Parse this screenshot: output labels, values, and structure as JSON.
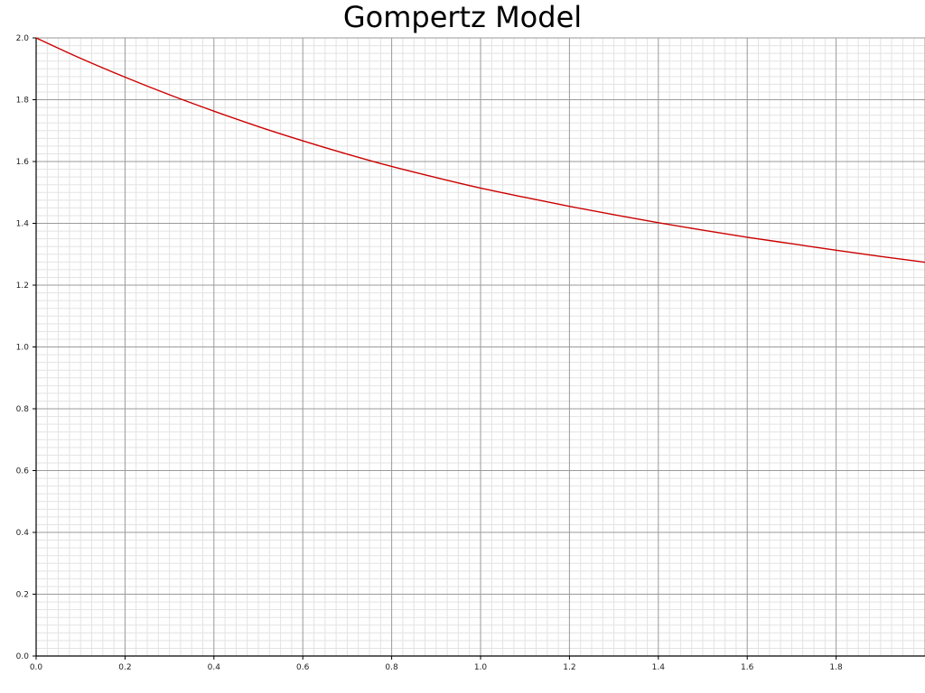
{
  "chart_data": {
    "type": "line",
    "title": "Gompertz Model",
    "xlabel": "",
    "ylabel": "",
    "xlim": [
      0,
      2.0
    ],
    "ylim": [
      0,
      2.0
    ],
    "x_ticks": [
      "0.0",
      "0.2",
      "0.4",
      "0.6",
      "0.8",
      "1.0",
      "1.2",
      "1.4",
      "1.6",
      "1.8"
    ],
    "y_ticks": [
      "0.0",
      "0.2",
      "0.4",
      "0.6",
      "0.8",
      "1.0",
      "1.2",
      "1.4",
      "1.6",
      "1.8",
      "2.0"
    ],
    "grid": true,
    "legend": "none",
    "series": [
      {
        "color": "#cc0000",
        "x": [
          0.0,
          0.1,
          0.2,
          0.3,
          0.4,
          0.5,
          0.6,
          0.7,
          0.8,
          0.9,
          1.0,
          1.1,
          1.2,
          1.3,
          1.4,
          1.5,
          1.6,
          1.7,
          1.8,
          1.9,
          2.0
        ],
        "y": [
          2.0,
          1.934,
          1.873,
          1.816,
          1.763,
          1.713,
          1.667,
          1.624,
          1.584,
          1.548,
          1.514,
          1.484,
          1.455,
          1.428,
          1.402,
          1.378,
          1.355,
          1.334,
          1.313,
          1.293,
          1.274
        ]
      }
    ]
  }
}
